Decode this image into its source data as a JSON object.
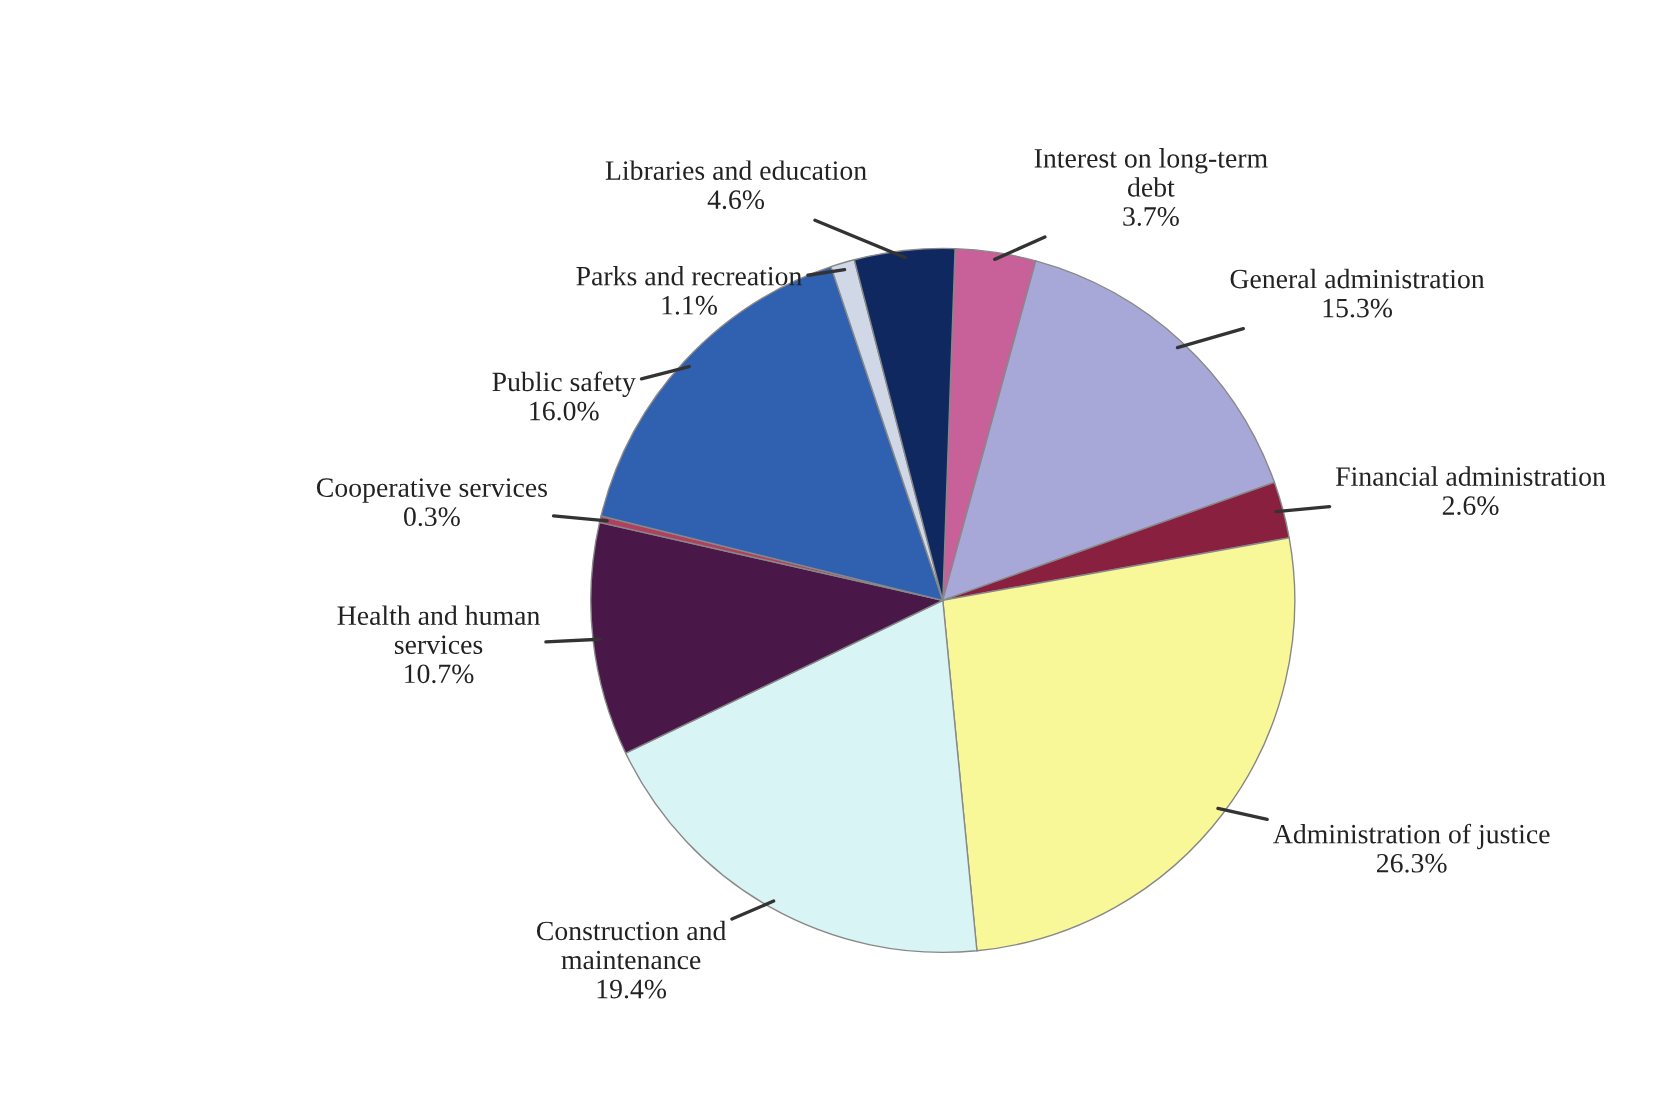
{
  "chart_data": {
    "type": "pie",
    "categories": [
      "Interest on long-term\ndebt",
      "General administration",
      "Financial administration",
      "Administration of justice",
      "Construction and\nmaintenance",
      "Health and human\nservices",
      "Cooperative services",
      "Public safety",
      "Parks and recreation",
      "Libraries and education"
    ],
    "values": [
      3.7,
      15.3,
      2.6,
      26.3,
      19.4,
      10.7,
      0.3,
      16.0,
      1.1,
      4.6
    ],
    "value_labels": [
      "3.7%",
      "15.3%",
      "2.6%",
      "26.3%",
      "19.4%",
      "10.7%",
      "0.3%",
      "16.0%",
      "1.1%",
      "4.6%"
    ],
    "colors": [
      "#c8609a",
      "#a8a8d8",
      "#8a2040",
      "#f8f898",
      "#d8f4f4",
      "#4a1848",
      "#b04060",
      "#3060b0",
      "#d0d8e8",
      "#102860"
    ]
  }
}
